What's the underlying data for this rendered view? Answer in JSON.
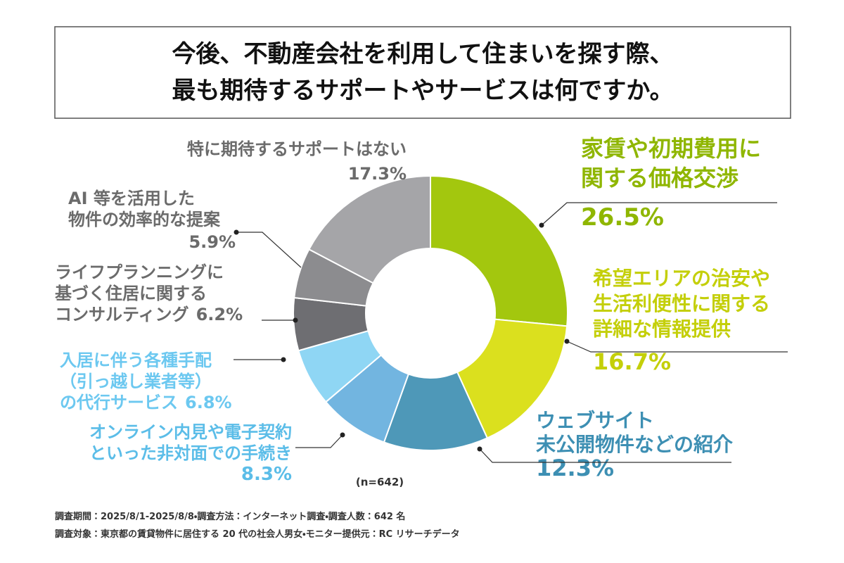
{
  "chart_data": {
    "type": "pie",
    "title": [
      "今後、不動産会社を利用して住まいを探す際、",
      "最も期待するサポートやサービスは何ですか。"
    ],
    "categories": [
      [
        "家賃や初期費用に",
        "関する価格交渉"
      ],
      [
        "希望エリアの治安や",
        "生活利便性に関する",
        "詳細な情報提供"
      ],
      [
        "ウェブサイト",
        "未公開物件などの紹介"
      ],
      [
        "オンライン内見や電子契約",
        "といった非対面での手続き"
      ],
      [
        "入居に伴う各種手配",
        "（引っ越し業者等）",
        "の代行サービス"
      ],
      [
        "ライフプランニングに",
        "基づく住居に関する",
        "コンサルティング"
      ],
      [
        "AI 等を活用した",
        "物件の効率的な提案"
      ],
      [
        "特に期待するサポートはない"
      ]
    ],
    "values": [
      26.5,
      16.7,
      12.3,
      8.3,
      6.8,
      6.2,
      5.9,
      17.3
    ],
    "value_labels": [
      "26.5%",
      "16.7%",
      "12.3%",
      "8.3%",
      "6.8%",
      "6.2%",
      "5.9%",
      "17.3%"
    ],
    "colors": [
      "#a3c70e",
      "#dbe01e",
      "#4e98b8",
      "#72b5e0",
      "#8fd6f4",
      "#6e6e72",
      "#8c8c8f",
      "#a5a5a8"
    ],
    "label_colors": [
      "#8fb600",
      "#c4cf0a",
      "#3d8fb3",
      "#5bbde8",
      "#6cc8f0",
      "#6b6b6b",
      "#6b6b6b",
      "#6b6b6b"
    ],
    "note": "(n=642)",
    "footnotes": [
      "調査期間：2025/8/1-2025/8/8・調査方法：インターネット調査・調査人数：642 名",
      "調査対象：東京都の賃貸物件に居住する 20 代の社会人男女・モニター提供元：RC リサーチデータ"
    ]
  }
}
